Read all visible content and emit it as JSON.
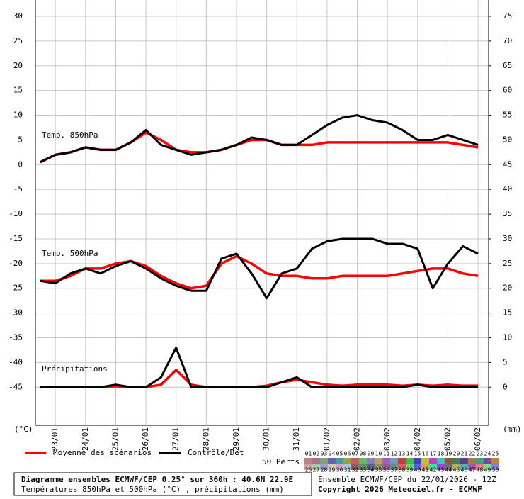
{
  "chart_data": {
    "type": "line",
    "title": "Diagramme ensembles ECMWF/CEP 0.25° sur 360h : 40.6N 22.9E",
    "subtitle": "Températures 850hPa et 500hPa (°C) , précipitations (mm)",
    "run_label": "Ensemble ECMWF/CEP du 22/01/2026 - 12Z",
    "copyright": "Copyright 2026 Meteociel.fr - ECMWF",
    "y_unit": "(°C)",
    "y2_unit": "(mm)",
    "panel_labels": [
      "Temp. 850hPa",
      "Temp. 500hPa",
      "Précipitations"
    ],
    "grid": true,
    "xlim": [
      0.34,
      15.35
    ],
    "xticks": [
      {
        "value": 1,
        "label": "23/01"
      },
      {
        "value": 2,
        "label": "24/01"
      },
      {
        "value": 3,
        "label": "25/01"
      },
      {
        "value": 4,
        "label": "26/01"
      },
      {
        "value": 5,
        "label": "27/01"
      },
      {
        "value": 6,
        "label": "28/01"
      },
      {
        "value": 7,
        "label": "29/01"
      },
      {
        "value": 8,
        "label": "30/01"
      },
      {
        "value": 9,
        "label": "31/01"
      },
      {
        "value": 10,
        "label": "01/02"
      },
      {
        "value": 11,
        "label": "02/02"
      },
      {
        "value": 12,
        "label": "03/02"
      },
      {
        "value": 13,
        "label": "04/02"
      },
      {
        "value": 14,
        "label": "05/02"
      },
      {
        "value": 15,
        "label": "06/02"
      }
    ],
    "ylim": [
      -52.7,
      33.3
    ],
    "yticks": [
      30,
      25,
      20,
      15,
      10,
      5,
      0,
      -5,
      -10,
      -15,
      -20,
      -25,
      -30,
      -35,
      -40,
      -45
    ],
    "y2lim": [
      -7.7,
      78.3
    ],
    "y2ticks": [
      75,
      70,
      65,
      60,
      55,
      50,
      45,
      40,
      35,
      30,
      25,
      20,
      15,
      10,
      5,
      0
    ],
    "x": [
      0.5,
      1,
      1.5,
      2,
      2.5,
      3,
      3.5,
      4,
      4.5,
      5,
      5.5,
      6,
      6.5,
      7,
      7.5,
      8,
      8.5,
      9,
      9.5,
      10,
      10.5,
      11,
      11.5,
      12,
      12.5,
      13,
      13.5,
      14,
      14.5,
      15
    ],
    "series": [
      {
        "name": "Moyenne des scénarios",
        "color": "#ff0000",
        "t850": [
          0.5,
          2,
          2.5,
          3.5,
          3,
          3,
          4.5,
          6.5,
          5,
          3,
          2.5,
          2.5,
          3,
          4,
          5,
          5,
          4,
          4,
          4,
          4.5,
          4.5,
          4.5,
          4.5,
          4.5,
          4.5,
          4.5,
          4.5,
          4.5,
          4,
          3.5
        ],
        "t500": [
          -23.5,
          -23.5,
          -22.5,
          -21,
          -21,
          -20,
          -19.5,
          -20.5,
          -22.5,
          -24,
          -25,
          -24.5,
          -20,
          -18.5,
          -20,
          -22,
          -22.5,
          -22.5,
          -23,
          -23,
          -22.5,
          -22.5,
          -22.5,
          -22.5,
          -22,
          -21.5,
          -21,
          -21,
          -22,
          -22.5
        ],
        "precip": [
          0,
          0,
          0,
          0,
          0,
          0.2,
          0,
          0,
          0.5,
          3.5,
          0.5,
          0,
          0,
          0,
          0,
          0.3,
          1,
          1.5,
          1,
          0.5,
          0.3,
          0.5,
          0.5,
          0.5,
          0.3,
          0.5,
          0.3,
          0.5,
          0.3,
          0.3
        ]
      },
      {
        "name": "Contrôle/Det",
        "color": "#000000",
        "t850": [
          0.5,
          2,
          2.5,
          3.5,
          3,
          3,
          4.5,
          7,
          4,
          3,
          2,
          2.5,
          3,
          4,
          5.5,
          5,
          4,
          4,
          6,
          8,
          9.5,
          10,
          9,
          8.5,
          7,
          5,
          5,
          6,
          5,
          4
        ],
        "t500": [
          -23.5,
          -24,
          -22,
          -21,
          -22,
          -20.5,
          -19.5,
          -21,
          -23,
          -24.5,
          -25.5,
          -25.5,
          -19,
          -18,
          -22,
          -27,
          -22,
          -21,
          -17,
          -15.5,
          -15,
          -15,
          -15,
          -16,
          -16,
          -17,
          -25,
          -20,
          -16.5,
          -18
        ],
        "precip": [
          0,
          0,
          0,
          0,
          0,
          0.5,
          0,
          0,
          2,
          8,
          0,
          0,
          0,
          0,
          0,
          0,
          1,
          2,
          0,
          0,
          0,
          0,
          0,
          0,
          0,
          0.5,
          0,
          0,
          0,
          0
        ]
      }
    ],
    "members": {
      "label": "50 Perts.",
      "ids": [
        "01",
        "02",
        "03",
        "04",
        "05",
        "06",
        "07",
        "08",
        "09",
        "10",
        "11",
        "12",
        "13",
        "14",
        "15",
        "16",
        "17",
        "18",
        "19",
        "20",
        "21",
        "22",
        "23",
        "24",
        "25",
        "26",
        "27",
        "28",
        "29",
        "30",
        "31",
        "32",
        "33",
        "34",
        "35",
        "36",
        "37",
        "38",
        "39",
        "40",
        "41",
        "42",
        "43",
        "44",
        "45",
        "46",
        "47",
        "48",
        "49",
        "50"
      ],
      "colors": [
        "#c08080",
        "#b07090",
        "#80a080",
        "#6060c0",
        "#40a0a0",
        "#a0a040",
        "#c06060",
        "#60c060",
        "#8080c0",
        "#c0a060",
        "#a060c0",
        "#60a0c0",
        "#c04040",
        "#40c040",
        "#4040c0",
        "#c0c040",
        "#c040c0",
        "#40c0c0",
        "#806040",
        "#408060",
        "#604080",
        "#a08040",
        "#40a080",
        "#8040a0",
        "#c08040",
        "#d0a0a0",
        "#a0d0a0",
        "#a0a0d0",
        "#d0d0a0",
        "#d0a0d0",
        "#a0d0d0",
        "#906060",
        "#609060",
        "#606090",
        "#909060",
        "#906090",
        "#609090",
        "#e06060",
        "#60e060",
        "#6060e0",
        "#e0a040",
        "#40e0a0",
        "#a040e0",
        "#707070",
        "#b0b050",
        "#50b0b0",
        "#b050b0",
        "#e08080",
        "#80e080",
        "#8080e0"
      ]
    }
  }
}
